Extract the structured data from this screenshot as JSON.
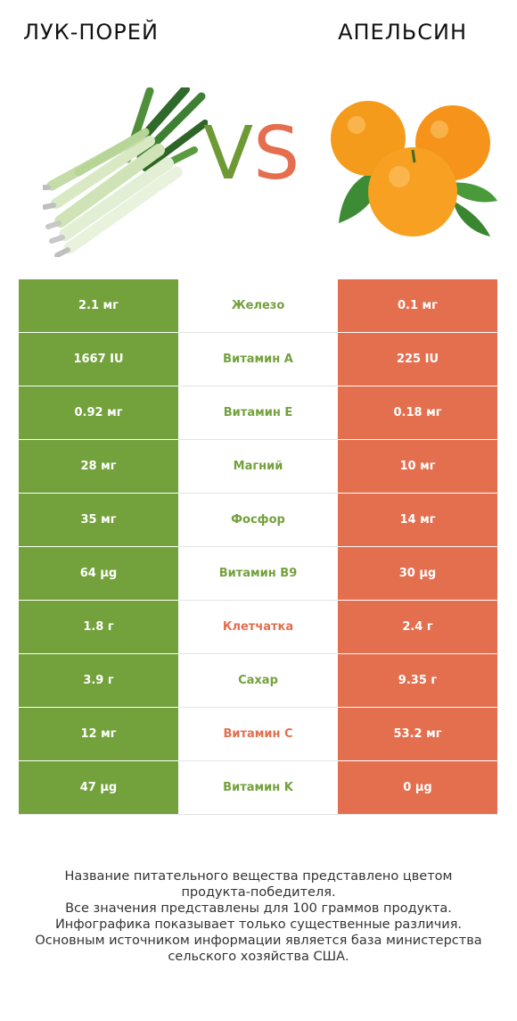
{
  "header": {
    "left_title": "ЛУК-ПОРЕЙ",
    "right_title": "АПЕЛЬСИН",
    "vs_v": "V",
    "vs_s": "S"
  },
  "colors": {
    "left": "#73a13c",
    "right": "#e36f4f"
  },
  "rows": [
    {
      "left": "2.1 мг",
      "label": "Железо",
      "right": "0.1 мг",
      "winner": "left"
    },
    {
      "left": "1667 IU",
      "label": "Витамин A",
      "right": "225 IU",
      "winner": "left"
    },
    {
      "left": "0.92 мг",
      "label": "Витамин E",
      "right": "0.18 мг",
      "winner": "left"
    },
    {
      "left": "28 мг",
      "label": "Магний",
      "right": "10 мг",
      "winner": "left"
    },
    {
      "left": "35 мг",
      "label": "Фосфор",
      "right": "14 мг",
      "winner": "left"
    },
    {
      "left": "64 µg",
      "label": "Витамин B9",
      "right": "30 µg",
      "winner": "left"
    },
    {
      "left": "1.8 г",
      "label": "Клетчатка",
      "right": "2.4 г",
      "winner": "right"
    },
    {
      "left": "3.9 г",
      "label": "Сахар",
      "right": "9.35 г",
      "winner": "left"
    },
    {
      "left": "12 мг",
      "label": "Витамин C",
      "right": "53.2 мг",
      "winner": "right"
    },
    {
      "left": "47 µg",
      "label": "Витамин K",
      "right": "0 µg",
      "winner": "left"
    }
  ],
  "footer": [
    "Название питательного вещества представлено цветом",
    "продукта-победителя.",
    "Все значения представлены для 100 граммов продукта.",
    "Инфографика показывает только существенные различия.",
    "Основным источником информации является база министерства",
    "сельского хозяйства США."
  ]
}
